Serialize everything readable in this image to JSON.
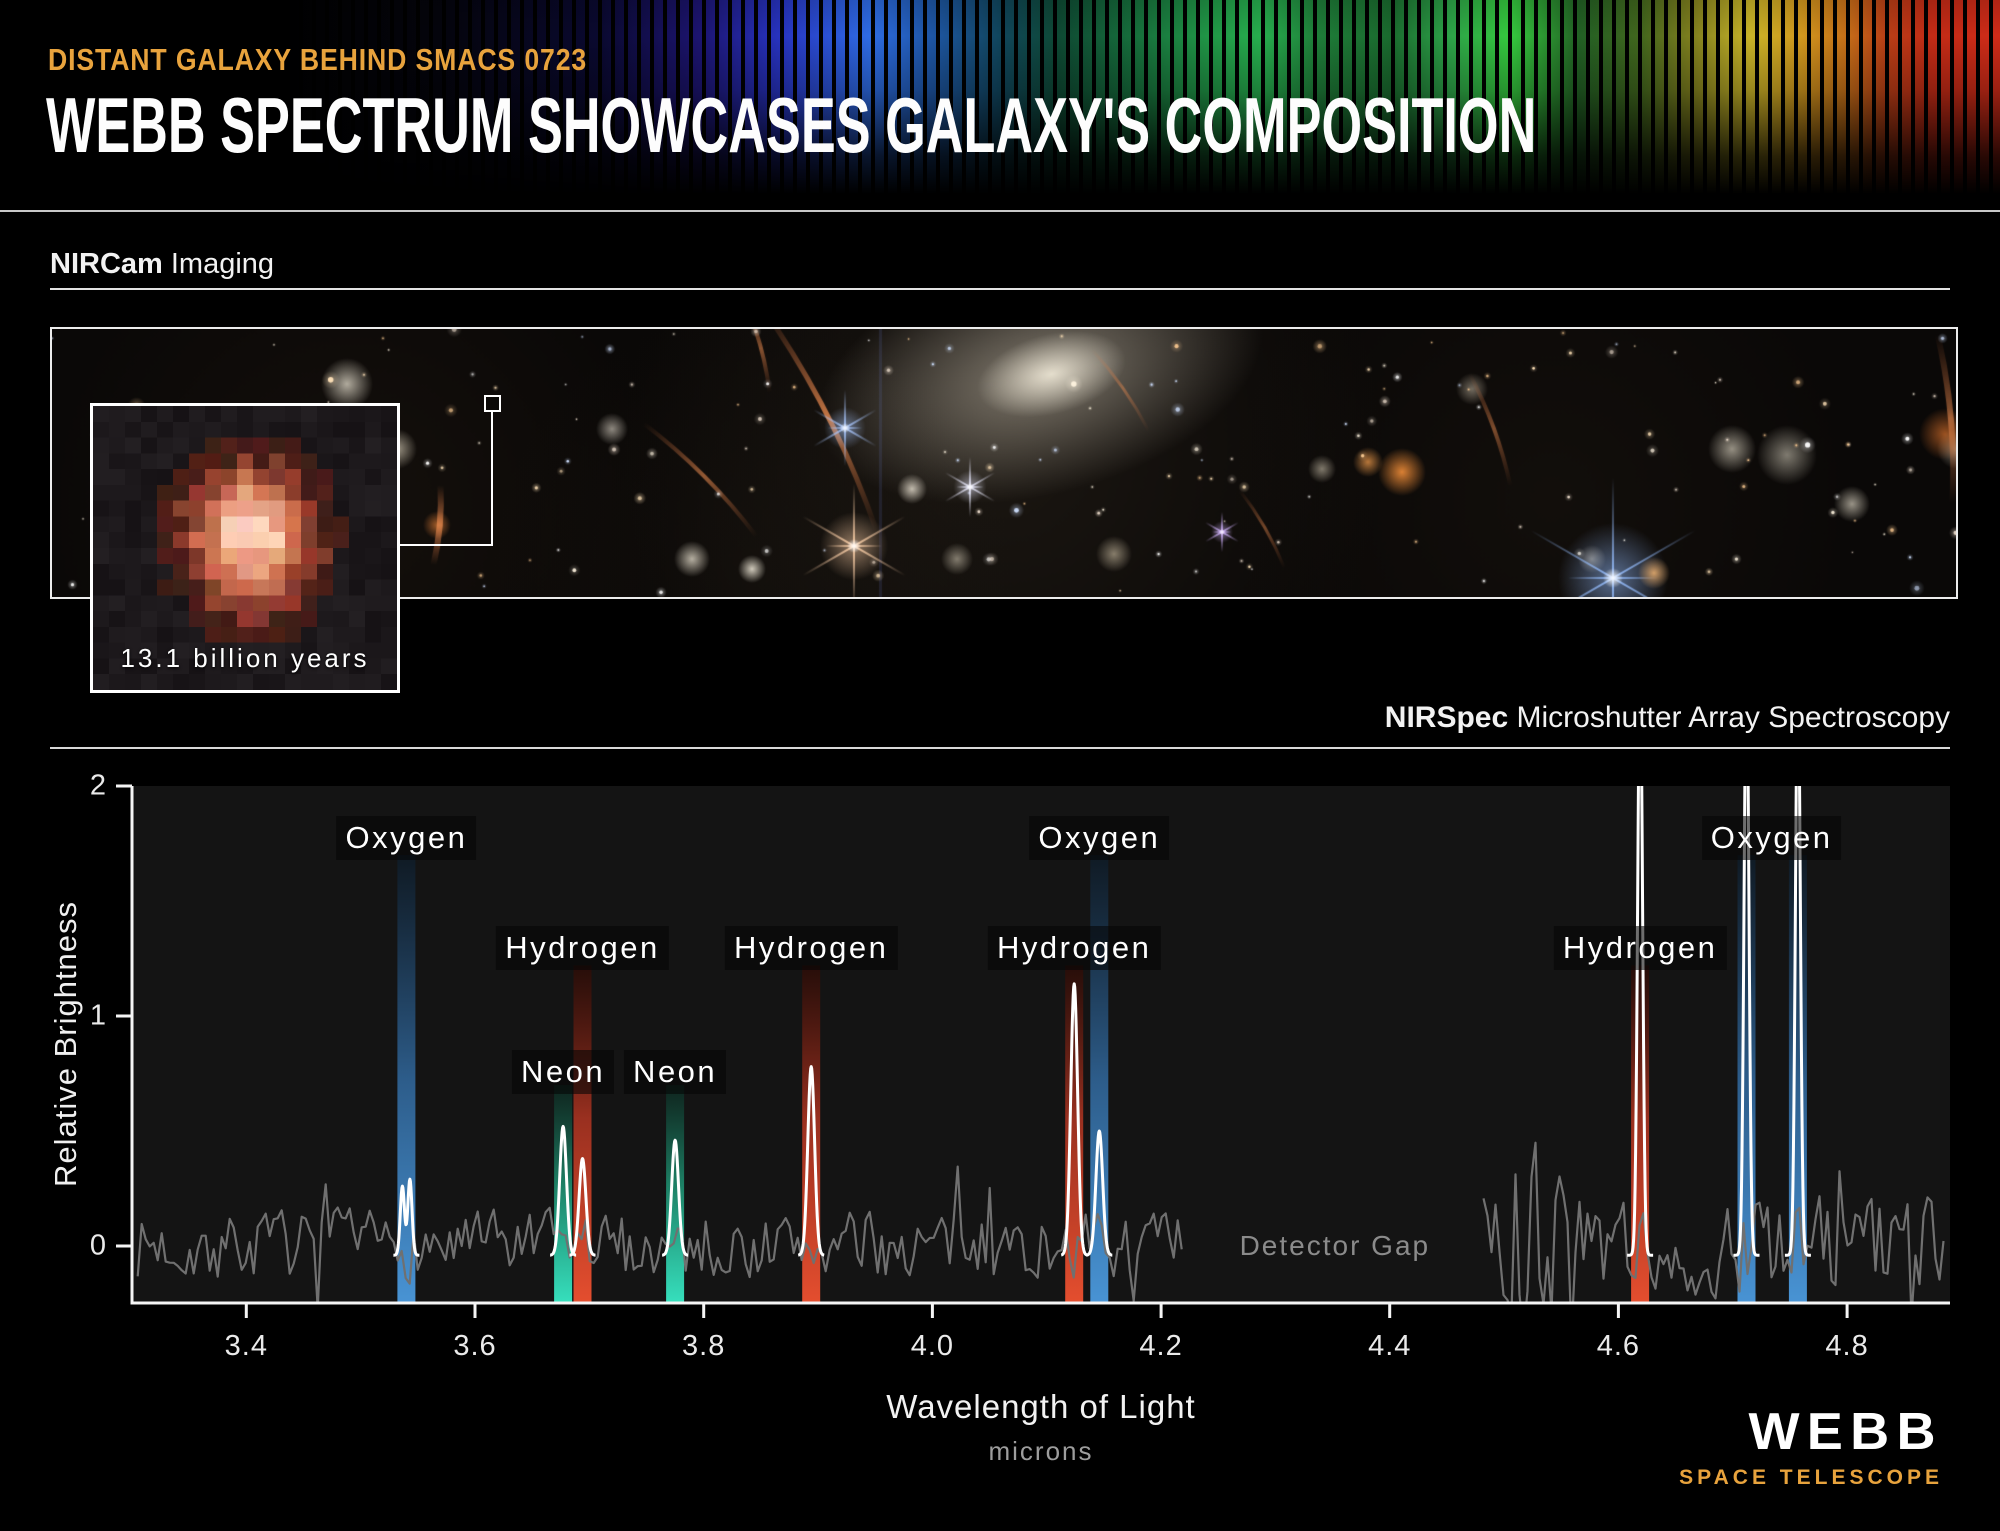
{
  "header": {
    "eyebrow": "DISTANT GALAXY BEHIND SMACS 0723",
    "title": "WEBB SPECTRUM SHOWCASES GALAXY'S COMPOSITION"
  },
  "sections": {
    "imaging_bold": "NIRCam",
    "imaging_rest": " Imaging",
    "spectroscopy_bold": "NIRSpec",
    "spectroscopy_rest": " Microshutter Array Spectroscopy"
  },
  "inset": {
    "caption": "13.1 billion years"
  },
  "logo": {
    "title": "WEBB",
    "subtitle": "SPACE TELESCOPE",
    "accent_color": "#e8a33d"
  },
  "chart_data": {
    "type": "line",
    "xlabel": "Wavelength of Light",
    "xlabel_units": "microns",
    "ylabel": "Relative Brightness",
    "xlim": [
      3.3,
      4.89
    ],
    "ylim": [
      -0.25,
      2.0
    ],
    "x_ticks": [
      3.4,
      3.6,
      3.8,
      4.0,
      4.2,
      4.4,
      4.6,
      4.8
    ],
    "y_ticks": [
      0,
      1,
      2
    ],
    "grid": false,
    "legend": false,
    "detector_gap": {
      "label": "Detector Gap",
      "x_range": [
        4.22,
        4.48
      ],
      "label_x": 4.352,
      "label_y_value": 0.0
    },
    "noise_segments": [
      {
        "x_range": [
          3.305,
          4.22
        ],
        "amplitude": 0.09
      },
      {
        "x_range": [
          4.482,
          4.886
        ],
        "amplitude": 0.13,
        "boost_until": 4.55,
        "boost_factor": 2.1
      }
    ],
    "emission_lines": [
      {
        "element": "Oxygen",
        "wavelength": 3.54,
        "color": "blue",
        "peak": 0.33,
        "peak_shape": "double",
        "band_top_value": 1.7,
        "label_row": "top"
      },
      {
        "element": "Neon",
        "wavelength": 3.677,
        "color": "teal",
        "peak": 0.56,
        "band_top_value": 0.7,
        "label_row": "mid"
      },
      {
        "element": "Hydrogen",
        "wavelength": 3.694,
        "color": "red",
        "peak": 0.42,
        "band_top_value": 1.22,
        "label_row": "upper"
      },
      {
        "element": "Neon",
        "wavelength": 3.775,
        "color": "teal",
        "peak": 0.5,
        "band_top_value": 0.7,
        "label_row": "mid"
      },
      {
        "element": "Hydrogen",
        "wavelength": 3.894,
        "color": "red",
        "peak": 0.82,
        "band_top_value": 1.22,
        "label_row": "upper"
      },
      {
        "element": "Hydrogen",
        "wavelength": 4.124,
        "color": "red",
        "peak": 1.18,
        "band_top_value": 1.22,
        "label_row": "upper"
      },
      {
        "element": "Oxygen",
        "wavelength": 4.146,
        "color": "blue",
        "peak": 0.54,
        "band_top_value": 1.7,
        "label_row": "top",
        "label": false
      },
      {
        "element": "Oxygen",
        "wavelength": 4.146,
        "color": "none",
        "peak": 0,
        "band_top_value": 0,
        "label_row": "top",
        "label_lambda": 4.146,
        "label_only": true
      },
      {
        "element": "Hydrogen",
        "wavelength": 4.619,
        "color": "red",
        "peak": 2.6,
        "clipped": true,
        "band_top_value": 1.22,
        "label_row": "upper"
      },
      {
        "element": "Oxygen",
        "wavelength": 4.712,
        "color": "blue",
        "peak": 2.6,
        "clipped": true,
        "band_top_value": 1.7,
        "label_row": "top",
        "label_lambda": 4.734
      },
      {
        "element": "Oxygen",
        "wavelength": 4.757,
        "color": "blue",
        "peak": 2.6,
        "clipped": true,
        "band_top_value": 1.7,
        "label_row": "top",
        "label": false
      }
    ],
    "colors": {
      "noise_line": "#707070",
      "signal_line": "#ffffff",
      "blue_band": "#4b9ade",
      "teal_band": "#38eac6",
      "red_band": "#ef5130",
      "axis": "#f5f5f5"
    }
  }
}
